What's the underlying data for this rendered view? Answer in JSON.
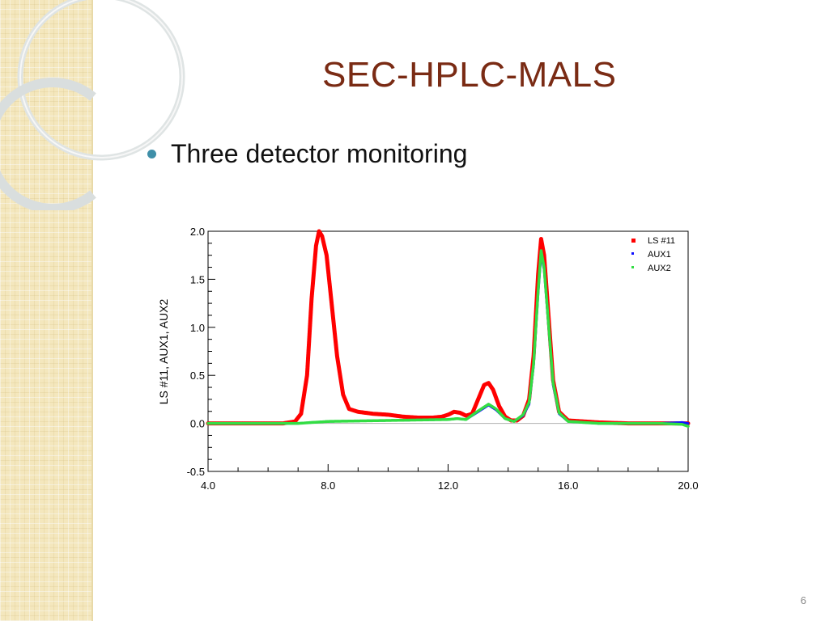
{
  "slide": {
    "title": "SEC-HPLC-MALS",
    "bullet": "Three detector monitoring",
    "page_number": "6"
  },
  "chart_data": {
    "type": "line",
    "title": "",
    "xlabel": "",
    "ylabel": "LS #11, AUX1, AUX2",
    "xlim": [
      4.0,
      20.0
    ],
    "ylim": [
      -0.5,
      2.0
    ],
    "x_ticks": [
      "4.0",
      "8.0",
      "12.0",
      "16.0",
      "20.0"
    ],
    "y_ticks": [
      "2.0",
      "1.5",
      "1.0",
      "0.5",
      "0.0",
      "-0.5"
    ],
    "grid": false,
    "legend_position": "top-right",
    "series": [
      {
        "name": "LS #11",
        "color": "#ff0000",
        "x": [
          4.0,
          6.5,
          6.9,
          7.1,
          7.3,
          7.45,
          7.6,
          7.7,
          7.8,
          7.95,
          8.1,
          8.3,
          8.5,
          8.7,
          9.0,
          9.5,
          10.0,
          10.5,
          11.0,
          11.5,
          11.8,
          12.0,
          12.2,
          12.4,
          12.6,
          12.8,
          13.0,
          13.2,
          13.35,
          13.5,
          13.7,
          13.9,
          14.1,
          14.3,
          14.5,
          14.7,
          14.85,
          15.0,
          15.1,
          15.2,
          15.35,
          15.5,
          15.7,
          16.0,
          17.0,
          18.0,
          19.0,
          20.0
        ],
        "y": [
          0.0,
          0.0,
          0.02,
          0.1,
          0.5,
          1.3,
          1.85,
          2.0,
          1.95,
          1.75,
          1.3,
          0.7,
          0.3,
          0.15,
          0.12,
          0.1,
          0.09,
          0.07,
          0.06,
          0.06,
          0.07,
          0.09,
          0.12,
          0.11,
          0.08,
          0.1,
          0.25,
          0.4,
          0.42,
          0.35,
          0.18,
          0.07,
          0.03,
          0.03,
          0.08,
          0.25,
          0.7,
          1.55,
          1.92,
          1.75,
          1.1,
          0.45,
          0.12,
          0.03,
          0.01,
          0.0,
          0.0,
          0.0
        ]
      },
      {
        "name": "AUX1",
        "color": "#1010ff",
        "x": [
          4.0,
          7.0,
          8.0,
          10.0,
          12.0,
          12.3,
          12.6,
          13.0,
          13.35,
          13.6,
          13.9,
          14.2,
          14.5,
          14.7,
          14.85,
          15.0,
          15.1,
          15.2,
          15.35,
          15.5,
          15.7,
          16.0,
          17.0,
          18.0,
          19.0,
          19.8,
          20.0
        ],
        "y": [
          0.0,
          0.0,
          0.02,
          0.03,
          0.04,
          0.05,
          0.04,
          0.12,
          0.19,
          0.14,
          0.05,
          0.02,
          0.08,
          0.2,
          0.6,
          1.35,
          1.76,
          1.6,
          1.0,
          0.4,
          0.1,
          0.02,
          0.0,
          0.0,
          0.0,
          0.01,
          0.0
        ]
      },
      {
        "name": "AUX2",
        "color": "#33dd44",
        "x": [
          4.0,
          7.0,
          8.0,
          10.0,
          12.0,
          12.3,
          12.6,
          13.0,
          13.35,
          13.6,
          13.9,
          14.2,
          14.5,
          14.7,
          14.85,
          15.0,
          15.1,
          15.2,
          15.35,
          15.5,
          15.7,
          16.0,
          17.0,
          18.0,
          19.0,
          19.8,
          20.0
        ],
        "y": [
          0.0,
          0.0,
          0.02,
          0.03,
          0.04,
          0.05,
          0.04,
          0.13,
          0.2,
          0.15,
          0.05,
          0.02,
          0.09,
          0.22,
          0.62,
          1.38,
          1.8,
          1.62,
          1.02,
          0.42,
          0.11,
          0.02,
          0.0,
          0.0,
          0.0,
          -0.01,
          -0.03
        ]
      }
    ]
  }
}
